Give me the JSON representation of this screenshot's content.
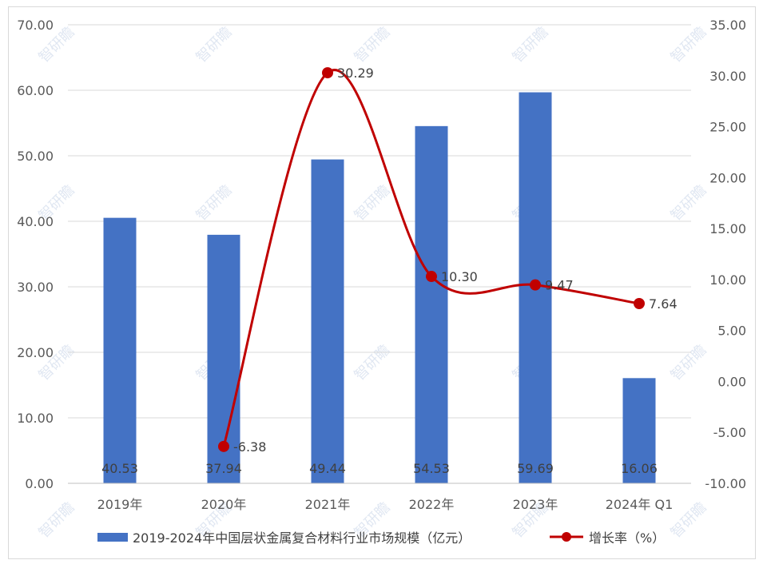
{
  "chart_data": {
    "type": "bar+line",
    "categories": [
      "2019年",
      "2020年",
      "2021年",
      "2022年",
      "2023年",
      "2024年 Q1"
    ],
    "series": [
      {
        "name": "2019-2024年中国层状金属复合材料行业市场规模（亿元）",
        "type": "bar",
        "axis": "left",
        "color": "#4472C4",
        "values": [
          40.53,
          37.94,
          49.44,
          54.53,
          59.69,
          16.06
        ],
        "labels": [
          "40.53",
          "37.94",
          "49.44",
          "54.53",
          "59.69",
          "16.06"
        ]
      },
      {
        "name": "增长率（%）",
        "type": "line",
        "axis": "right",
        "color": "#C00000",
        "values": [
          null,
          -6.38,
          30.29,
          10.3,
          9.47,
          7.64
        ],
        "labels": [
          "",
          "-6.38",
          "30.29",
          "10.30",
          "9.47",
          "7.64"
        ]
      }
    ],
    "y_left": {
      "range": [
        0,
        70
      ],
      "ticks": [
        "0.00",
        "10.00",
        "20.00",
        "30.00",
        "40.00",
        "50.00",
        "60.00",
        "70.00"
      ]
    },
    "y_right": {
      "range": [
        -10,
        35
      ],
      "ticks": [
        "-10.00",
        "-5.00",
        "0.00",
        "5.00",
        "10.00",
        "15.00",
        "20.00",
        "25.00",
        "30.00",
        "35.00"
      ]
    },
    "grid": true,
    "legend": "bottom",
    "watermark": "智研瞻"
  }
}
